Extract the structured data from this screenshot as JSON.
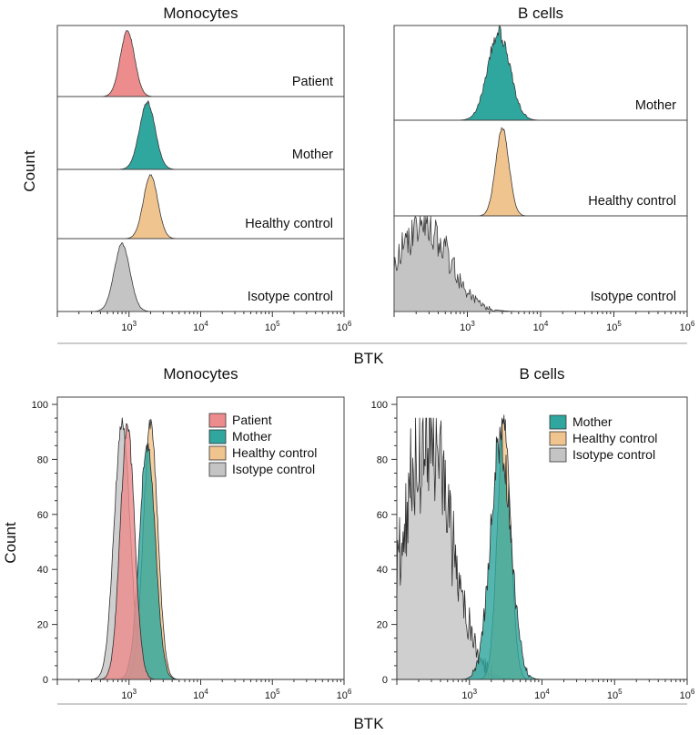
{
  "figure": {
    "top_x_label": "BTK",
    "bottom_x_label": "BTK",
    "y_label": "Count"
  },
  "colors": {
    "Patient": "#ec8c8c",
    "Mother": "#2fa69e",
    "Healthy control": "#f0c48e",
    "Isotype control": "#c4c4c4"
  },
  "chart_data": [
    {
      "type": "area",
      "title": "Monocytes",
      "layout": "stacked offset histograms",
      "xlabel": "BTK",
      "ylabel": "Count",
      "x_scale": "log",
      "xlim": [
        100,
        1000000
      ],
      "x_ticks": [
        "10^3",
        "10^4",
        "10^5",
        "10^6"
      ],
      "series": [
        {
          "name": "Patient",
          "label": "Patient",
          "peak_x": 950,
          "log_sigma": 0.1,
          "noise": 0.02
        },
        {
          "name": "Mother",
          "label": "Mother",
          "peak_x": 1800,
          "log_sigma": 0.11,
          "noise": 0.03
        },
        {
          "name": "Healthy control",
          "label": "Healthy control",
          "peak_x": 2000,
          "log_sigma": 0.1,
          "noise": 0.02
        },
        {
          "name": "Isotype control",
          "label": "Isotype control",
          "peak_x": 800,
          "log_sigma": 0.11,
          "noise": 0.03
        }
      ]
    },
    {
      "type": "area",
      "title": "B cells",
      "layout": "stacked offset histograms",
      "xlabel": "BTK",
      "ylabel": "Count",
      "x_scale": "log",
      "xlim": [
        100,
        1000000
      ],
      "x_ticks": [
        "10^3",
        "10^4",
        "10^5",
        "10^6"
      ],
      "series": [
        {
          "name": "Mother",
          "label": "Mother",
          "peak_x": 2700,
          "log_sigma": 0.15,
          "noise": 0.1
        },
        {
          "name": "Healthy control",
          "label": "Healthy control",
          "peak_x": 3000,
          "log_sigma": 0.09,
          "noise": 0.03
        },
        {
          "name": "Isotype control",
          "label": "Isotype control",
          "peak_x": 250,
          "log_sigma": 0.35,
          "noise": 0.25,
          "left_floor": 0.45
        }
      ]
    },
    {
      "type": "area",
      "title": "Monocytes",
      "layout": "overlaid histograms",
      "xlabel": "BTK",
      "ylabel": "Count",
      "x_scale": "log",
      "xlim": [
        100,
        1000000
      ],
      "ylim": [
        0,
        100
      ],
      "x_ticks": [
        "10^3",
        "10^4",
        "10^5",
        "10^6"
      ],
      "y_ticks": [
        0,
        20,
        40,
        60,
        80,
        100
      ],
      "legend_position": "top-right",
      "series": [
        {
          "name": "Patient",
          "peak_x": 950,
          "peak_count": 92,
          "log_sigma": 0.1,
          "noise": 0.03
        },
        {
          "name": "Mother",
          "peak_x": 1800,
          "peak_count": 85,
          "log_sigma": 0.11,
          "noise": 0.04
        },
        {
          "name": "Healthy control",
          "peak_x": 2000,
          "peak_count": 93,
          "log_sigma": 0.1,
          "noise": 0.03
        },
        {
          "name": "Isotype control",
          "peak_x": 800,
          "peak_count": 94,
          "log_sigma": 0.11,
          "noise": 0.03
        }
      ]
    },
    {
      "type": "area",
      "title": "B cells",
      "layout": "overlaid histograms",
      "xlabel": "BTK",
      "ylabel": "Count",
      "x_scale": "log",
      "xlim": [
        100,
        1000000
      ],
      "ylim": [
        0,
        100
      ],
      "x_ticks": [
        "10^3",
        "10^4",
        "10^5",
        "10^6"
      ],
      "y_ticks": [
        0,
        20,
        40,
        60,
        80,
        100
      ],
      "legend_position": "top-right",
      "series": [
        {
          "name": "Mother",
          "peak_x": 2700,
          "peak_count": 88,
          "log_sigma": 0.14,
          "noise": 0.12
        },
        {
          "name": "Healthy control",
          "peak_x": 3000,
          "peak_count": 94,
          "log_sigma": 0.09,
          "noise": 0.04
        },
        {
          "name": "Isotype control",
          "peak_x": 260,
          "peak_count": 88,
          "log_sigma": 0.33,
          "noise": 0.28,
          "left_floor": 0.42
        }
      ]
    }
  ]
}
